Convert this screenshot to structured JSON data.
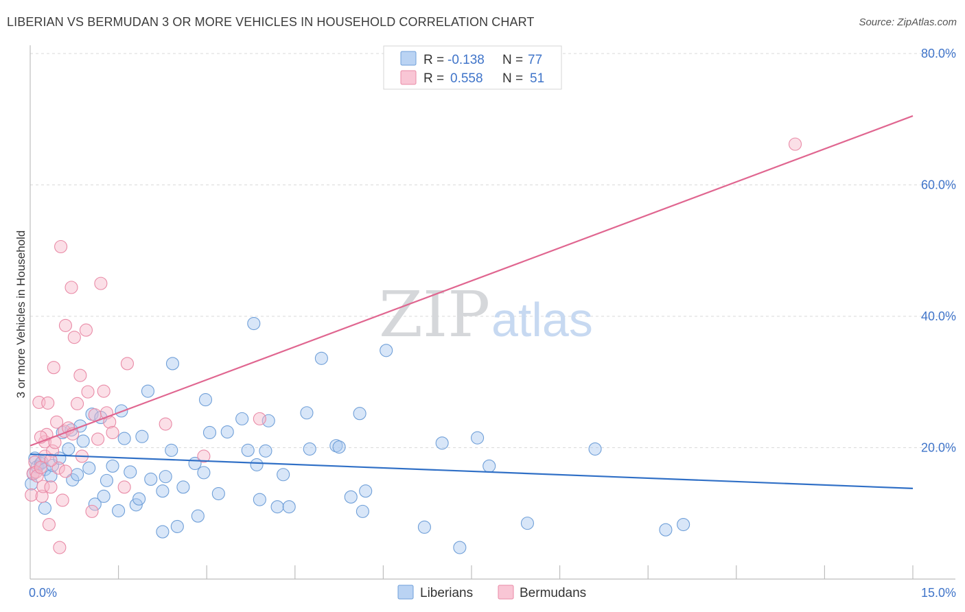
{
  "title": "LIBERIAN VS BERMUDAN 3 OR MORE VEHICLES IN HOUSEHOLD CORRELATION CHART",
  "source": "Source: ZipAtlas.com",
  "watermark": {
    "part1": "ZIP",
    "part2": "atlas"
  },
  "colors": {
    "liberians_fill": "#a9c8f0",
    "liberians_stroke": "#6f9fd8",
    "liberians_line": "#2f6fc6",
    "bermudans_fill": "#f7b8ca",
    "bermudans_stroke": "#e98aa6",
    "bermudans_line": "#e06690",
    "tick_label": "#3f74c9",
    "grid": "#d9d9d9"
  },
  "legend": {
    "rows": [
      {
        "r_label": "R =",
        "r_value": "-0.138",
        "n_label": "N =",
        "n_value": "77"
      },
      {
        "r_label": "R =",
        "r_value": "0.558",
        "n_label": "N =",
        "n_value": "51"
      }
    ]
  },
  "bottom_legend": [
    "Liberians",
    "Bermudans"
  ],
  "chart_data": {
    "type": "scatter",
    "title": "LIBERIAN VS BERMUDAN 3 OR MORE VEHICLES IN HOUSEHOLD CORRELATION CHART",
    "xlabel": "",
    "ylabel": "3 or more Vehicles in Household",
    "xlim": [
      0,
      15
    ],
    "ylim": [
      0,
      80
    ],
    "x_tick_labels": [
      "0.0%",
      "15.0%"
    ],
    "y_ticks": [
      20,
      40,
      60,
      80
    ],
    "y_tick_labels": [
      "20.0%",
      "40.0%",
      "60.0%",
      "80.0%"
    ],
    "grid": true,
    "legend_position": "top-center",
    "series": [
      {
        "name": "Liberians",
        "r": -0.138,
        "n": 77,
        "trend": {
          "x": [
            0,
            15
          ],
          "y": [
            19.0,
            13.8
          ]
        },
        "points": [
          [
            0.05,
            16.0
          ],
          [
            0.08,
            18.4
          ],
          [
            0.12,
            17.1
          ],
          [
            0.18,
            17.6
          ],
          [
            0.2,
            17.8
          ],
          [
            0.25,
            16.7
          ],
          [
            0.25,
            10.8
          ],
          [
            0.35,
            15.7
          ],
          [
            0.38,
            17.3
          ],
          [
            0.5,
            18.4
          ],
          [
            0.55,
            22.3
          ],
          [
            0.65,
            19.8
          ],
          [
            0.7,
            22.7
          ],
          [
            0.72,
            15.1
          ],
          [
            0.8,
            15.9
          ],
          [
            0.85,
            23.3
          ],
          [
            0.9,
            21.0
          ],
          [
            1.0,
            16.9
          ],
          [
            1.05,
            25.1
          ],
          [
            1.1,
            11.4
          ],
          [
            1.2,
            24.6
          ],
          [
            1.25,
            12.6
          ],
          [
            1.3,
            15.0
          ],
          [
            1.4,
            17.2
          ],
          [
            1.5,
            10.4
          ],
          [
            1.55,
            25.6
          ],
          [
            1.6,
            21.4
          ],
          [
            1.7,
            16.3
          ],
          [
            1.8,
            11.3
          ],
          [
            1.85,
            12.2
          ],
          [
            1.9,
            21.7
          ],
          [
            2.0,
            28.6
          ],
          [
            2.05,
            15.2
          ],
          [
            2.25,
            13.4
          ],
          [
            2.25,
            7.2
          ],
          [
            2.3,
            15.6
          ],
          [
            2.4,
            19.6
          ],
          [
            2.42,
            32.8
          ],
          [
            2.5,
            8.0
          ],
          [
            2.6,
            14.0
          ],
          [
            2.8,
            17.6
          ],
          [
            2.85,
            9.6
          ],
          [
            2.95,
            16.2
          ],
          [
            2.98,
            27.3
          ],
          [
            3.05,
            22.3
          ],
          [
            3.2,
            13.0
          ],
          [
            3.35,
            22.4
          ],
          [
            3.6,
            24.4
          ],
          [
            3.7,
            19.6
          ],
          [
            3.8,
            38.9
          ],
          [
            3.85,
            17.4
          ],
          [
            3.9,
            12.1
          ],
          [
            4.0,
            19.5
          ],
          [
            4.05,
            24.1
          ],
          [
            4.2,
            11.0
          ],
          [
            4.3,
            15.9
          ],
          [
            4.4,
            11.0
          ],
          [
            4.7,
            25.3
          ],
          [
            4.75,
            19.8
          ],
          [
            4.95,
            33.6
          ],
          [
            5.2,
            20.3
          ],
          [
            5.25,
            20.1
          ],
          [
            5.45,
            12.5
          ],
          [
            5.6,
            25.2
          ],
          [
            5.65,
            10.3
          ],
          [
            5.7,
            13.4
          ],
          [
            6.05,
            34.8
          ],
          [
            6.7,
            7.9
          ],
          [
            7.0,
            20.7
          ],
          [
            7.3,
            4.8
          ],
          [
            7.6,
            21.5
          ],
          [
            7.8,
            17.2
          ],
          [
            8.45,
            8.5
          ],
          [
            9.6,
            19.8
          ],
          [
            10.8,
            7.5
          ],
          [
            11.1,
            8.3
          ],
          [
            0.02,
            14.5
          ]
        ]
      },
      {
        "name": "Bermudans",
        "r": 0.558,
        "n": 51,
        "trend": {
          "x": [
            0,
            15
          ],
          "y": [
            20.3,
            70.5
          ]
        },
        "points": [
          [
            0.02,
            12.8
          ],
          [
            0.05,
            16.1
          ],
          [
            0.08,
            17.8
          ],
          [
            0.1,
            16.3
          ],
          [
            0.12,
            15.7
          ],
          [
            0.15,
            26.9
          ],
          [
            0.18,
            17.0
          ],
          [
            0.2,
            12.6
          ],
          [
            0.22,
            14.1
          ],
          [
            0.25,
            18.7
          ],
          [
            0.25,
            20.9
          ],
          [
            0.28,
            22.0
          ],
          [
            0.3,
            26.8
          ],
          [
            0.32,
            8.3
          ],
          [
            0.35,
            14.0
          ],
          [
            0.38,
            19.5
          ],
          [
            0.4,
            32.2
          ],
          [
            0.42,
            20.8
          ],
          [
            0.45,
            23.9
          ],
          [
            0.48,
            16.9
          ],
          [
            0.5,
            4.8
          ],
          [
            0.52,
            50.6
          ],
          [
            0.55,
            12.0
          ],
          [
            0.58,
            22.5
          ],
          [
            0.6,
            38.6
          ],
          [
            0.65,
            23.0
          ],
          [
            0.7,
            44.4
          ],
          [
            0.72,
            22.1
          ],
          [
            0.75,
            36.8
          ],
          [
            0.8,
            26.7
          ],
          [
            0.85,
            31.0
          ],
          [
            0.88,
            18.7
          ],
          [
            0.95,
            37.9
          ],
          [
            0.98,
            28.5
          ],
          [
            1.05,
            10.3
          ],
          [
            1.1,
            25.0
          ],
          [
            1.15,
            21.3
          ],
          [
            1.2,
            45.0
          ],
          [
            1.25,
            28.6
          ],
          [
            1.3,
            25.3
          ],
          [
            1.35,
            23.9
          ],
          [
            1.4,
            22.3
          ],
          [
            1.6,
            14.0
          ],
          [
            1.65,
            32.8
          ],
          [
            2.3,
            23.6
          ],
          [
            2.95,
            18.7
          ],
          [
            3.9,
            24.4
          ],
          [
            13.0,
            66.2
          ],
          [
            0.18,
            21.6
          ],
          [
            0.6,
            16.4
          ],
          [
            0.35,
            18.1
          ]
        ]
      }
    ]
  }
}
